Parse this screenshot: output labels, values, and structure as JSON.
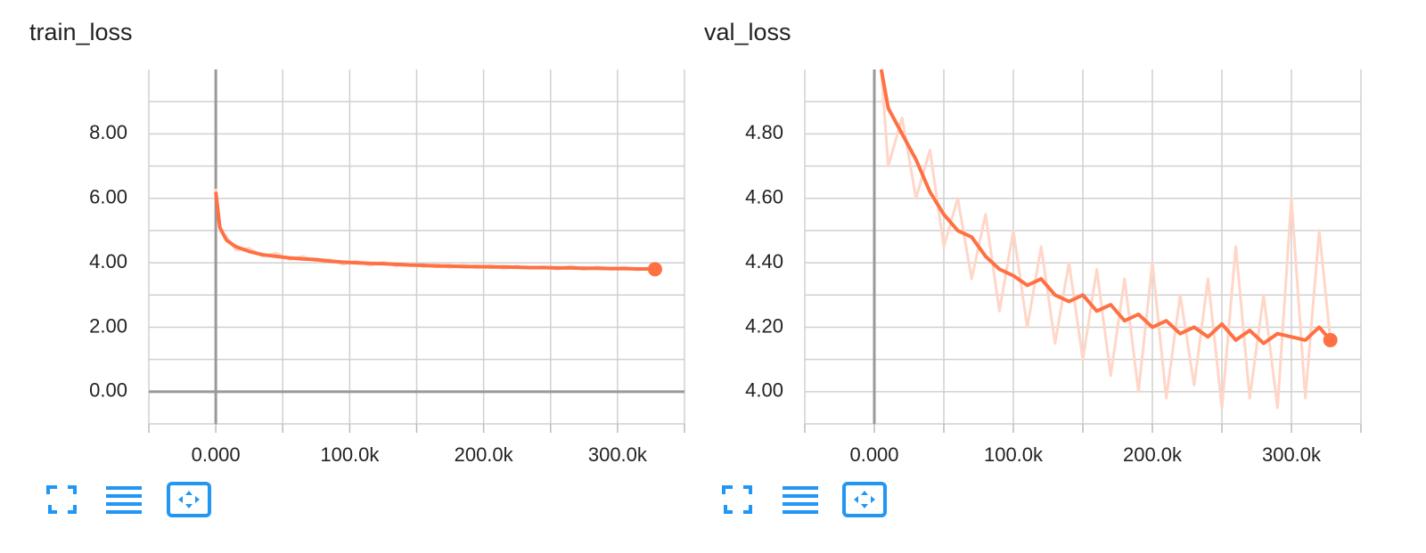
{
  "chart_data": [
    {
      "type": "line",
      "title": "train_loss",
      "x": [
        0,
        3000,
        8000,
        15000,
        25000,
        35000,
        45000,
        55000,
        65000,
        75000,
        85000,
        95000,
        105000,
        115000,
        125000,
        135000,
        145000,
        155000,
        165000,
        175000,
        185000,
        195000,
        205000,
        215000,
        225000,
        235000,
        245000,
        255000,
        265000,
        275000,
        285000,
        295000,
        305000,
        315000,
        325000,
        328000
      ],
      "series": [
        {
          "color": "#ffd6c7",
          "values": [
            6.3,
            5.0,
            4.8,
            4.4,
            4.45,
            4.2,
            4.3,
            4.1,
            4.2,
            4.05,
            4.1,
            3.95,
            4.05,
            3.92,
            4.02,
            3.9,
            3.98,
            3.88,
            3.95,
            3.85,
            3.93,
            3.84,
            3.92,
            3.82,
            3.9,
            3.83,
            3.88,
            3.8,
            3.9,
            3.79,
            3.87,
            3.8,
            3.86,
            3.78,
            3.85,
            3.78
          ]
        },
        {
          "color": "#ff7043",
          "values": [
            6.2,
            5.1,
            4.7,
            4.5,
            4.35,
            4.25,
            4.2,
            4.15,
            4.12,
            4.1,
            4.05,
            4.02,
            4.0,
            3.98,
            3.97,
            3.95,
            3.93,
            3.92,
            3.9,
            3.9,
            3.88,
            3.88,
            3.87,
            3.87,
            3.86,
            3.85,
            3.85,
            3.84,
            3.84,
            3.83,
            3.83,
            3.82,
            3.82,
            3.81,
            3.81,
            3.8
          ]
        }
      ],
      "xlim": [
        -50000,
        350000
      ],
      "xticks": [
        {
          "value": 0,
          "label": "0.000"
        },
        {
          "value": 100000,
          "label": "100.0k"
        },
        {
          "value": 200000,
          "label": "200.0k"
        },
        {
          "value": 300000,
          "label": "300.0k"
        }
      ],
      "xminorticks": [
        -50000,
        50000,
        150000,
        250000,
        350000
      ],
      "ylim": [
        -1,
        10
      ],
      "yticks": [
        {
          "value": 0,
          "label": "0.00"
        },
        {
          "value": 2,
          "label": "2.00"
        },
        {
          "value": 4,
          "label": "4.00"
        },
        {
          "value": 6,
          "label": "6.00"
        },
        {
          "value": 8,
          "label": "8.00"
        }
      ],
      "yminorticks": [
        -1,
        1,
        3,
        5,
        7,
        9
      ],
      "grid": true
    },
    {
      "type": "line",
      "title": "val_loss",
      "x": [
        5000,
        10000,
        20000,
        30000,
        40000,
        50000,
        60000,
        70000,
        80000,
        90000,
        100000,
        110000,
        120000,
        130000,
        140000,
        150000,
        160000,
        170000,
        180000,
        190000,
        200000,
        210000,
        220000,
        230000,
        240000,
        250000,
        260000,
        270000,
        280000,
        290000,
        300000,
        310000,
        320000,
        328000
      ],
      "series": [
        {
          "color": "#ffd6c7",
          "values": [
            5.0,
            4.7,
            4.85,
            4.6,
            4.75,
            4.45,
            4.6,
            4.35,
            4.55,
            4.25,
            4.5,
            4.2,
            4.45,
            4.15,
            4.4,
            4.1,
            4.38,
            4.05,
            4.35,
            4.0,
            4.4,
            3.98,
            4.3,
            4.02,
            4.35,
            3.95,
            4.45,
            3.98,
            4.3,
            3.95,
            4.6,
            3.98,
            4.5,
            4.16
          ]
        },
        {
          "color": "#ff7043",
          "values": [
            5.0,
            4.88,
            4.8,
            4.72,
            4.62,
            4.55,
            4.5,
            4.48,
            4.42,
            4.38,
            4.36,
            4.33,
            4.35,
            4.3,
            4.28,
            4.3,
            4.25,
            4.27,
            4.22,
            4.24,
            4.2,
            4.22,
            4.18,
            4.2,
            4.17,
            4.21,
            4.16,
            4.19,
            4.15,
            4.18,
            4.17,
            4.16,
            4.2,
            4.16
          ]
        }
      ],
      "xlim": [
        -50000,
        350000
      ],
      "xticks": [
        {
          "value": 0,
          "label": "0.000"
        },
        {
          "value": 100000,
          "label": "100.0k"
        },
        {
          "value": 200000,
          "label": "200.0k"
        },
        {
          "value": 300000,
          "label": "300.0k"
        }
      ],
      "xminorticks": [
        -50000,
        50000,
        150000,
        250000,
        350000
      ],
      "ylim": [
        3.9,
        5.0
      ],
      "yticks": [
        {
          "value": 4.0,
          "label": "4.00"
        },
        {
          "value": 4.2,
          "label": "4.20"
        },
        {
          "value": 4.4,
          "label": "4.40"
        },
        {
          "value": 4.6,
          "label": "4.60"
        },
        {
          "value": 4.8,
          "label": "4.80"
        }
      ],
      "yminorticks": [
        3.9,
        4.1,
        4.3,
        4.5,
        4.7,
        4.9
      ],
      "grid": true
    }
  ]
}
